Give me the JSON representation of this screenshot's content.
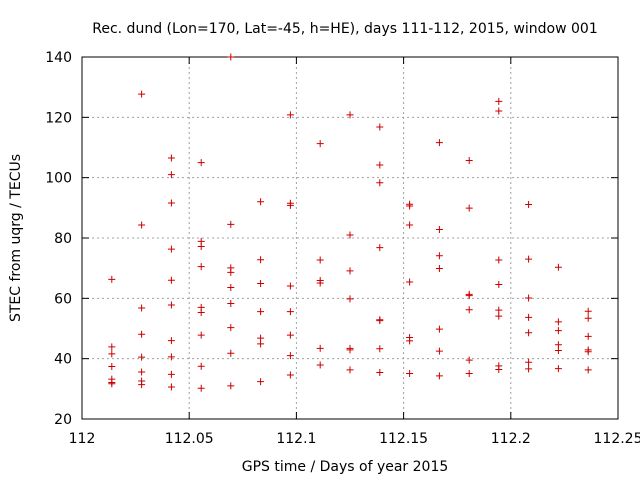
{
  "chart_data": {
    "type": "scatter",
    "title": "Rec. dund (Lon=170, Lat=-45, h=HE), days 111-112, 2015, window 001",
    "xlabel": "GPS time / Days of year 2015",
    "ylabel": "STEC from uqrg / TECUs",
    "xlim": [
      112,
      112.25
    ],
    "ylim": [
      20,
      140
    ],
    "xticks": [
      112,
      112.05,
      112.1,
      112.15,
      112.2,
      112.25
    ],
    "xtick_labels": [
      "112",
      "112.05",
      "112.1",
      "112.15",
      "112.2",
      "112.25"
    ],
    "yticks": [
      20,
      40,
      60,
      80,
      100,
      120,
      140
    ],
    "ytick_labels": [
      "20",
      "40",
      "60",
      "80",
      "100",
      "120",
      "140"
    ],
    "grid": true,
    "marker": "+",
    "color": "#cc0000",
    "series": [
      {
        "name": "STEC",
        "points": [
          [
            112.0139,
            66.3
          ],
          [
            112.0139,
            43.9
          ],
          [
            112.0139,
            41.6
          ],
          [
            112.0139,
            37.4
          ],
          [
            112.0139,
            33.2
          ],
          [
            112.0139,
            32.1
          ],
          [
            112.0139,
            31.7
          ],
          [
            112.0278,
            127.7
          ],
          [
            112.0278,
            84.3
          ],
          [
            112.0278,
            56.8
          ],
          [
            112.0278,
            48.1
          ],
          [
            112.0278,
            40.5
          ],
          [
            112.0278,
            35.6
          ],
          [
            112.0278,
            32.6
          ],
          [
            112.0278,
            31.4
          ],
          [
            112.0417,
            106.5
          ],
          [
            112.0417,
            101.0
          ],
          [
            112.0417,
            91.6
          ],
          [
            112.0417,
            76.3
          ],
          [
            112.0417,
            66.0
          ],
          [
            112.0417,
            57.8
          ],
          [
            112.0417,
            46.0
          ],
          [
            112.0417,
            40.6
          ],
          [
            112.0417,
            34.8
          ],
          [
            112.0417,
            30.6
          ],
          [
            112.0556,
            105.0
          ],
          [
            112.0556,
            78.9
          ],
          [
            112.0556,
            77.2
          ],
          [
            112.0556,
            70.5
          ],
          [
            112.0556,
            57.0
          ],
          [
            112.0556,
            55.3
          ],
          [
            112.0556,
            47.8
          ],
          [
            112.0556,
            37.5
          ],
          [
            112.0556,
            30.2
          ],
          [
            112.0694,
            140.0
          ],
          [
            112.0694,
            84.5
          ],
          [
            112.0694,
            70.1
          ],
          [
            112.0694,
            68.6
          ],
          [
            112.0694,
            63.6
          ],
          [
            112.0694,
            58.3
          ],
          [
            112.0694,
            50.3
          ],
          [
            112.0694,
            41.8
          ],
          [
            112.0694,
            31.0
          ],
          [
            112.0833,
            92.0
          ],
          [
            112.0833,
            72.8
          ],
          [
            112.0833,
            64.9
          ],
          [
            112.0833,
            55.6
          ],
          [
            112.0833,
            46.8
          ],
          [
            112.0833,
            44.9
          ],
          [
            112.0833,
            32.4
          ],
          [
            112.0972,
            120.8
          ],
          [
            112.0972,
            91.5
          ],
          [
            112.0972,
            90.8
          ],
          [
            112.0972,
            64.1
          ],
          [
            112.0972,
            55.6
          ],
          [
            112.0972,
            47.8
          ],
          [
            112.0972,
            41.0
          ],
          [
            112.0972,
            34.6
          ],
          [
            112.1111,
            111.3
          ],
          [
            112.1111,
            72.7
          ],
          [
            112.1111,
            65.9
          ],
          [
            112.1111,
            65.1
          ],
          [
            112.1111,
            43.4
          ],
          [
            112.1111,
            37.9
          ],
          [
            112.125,
            120.8
          ],
          [
            112.125,
            81.0
          ],
          [
            112.125,
            69.1
          ],
          [
            112.125,
            59.8
          ],
          [
            112.125,
            43.4
          ],
          [
            112.125,
            42.9
          ],
          [
            112.125,
            36.3
          ],
          [
            112.1389,
            116.8
          ],
          [
            112.1389,
            104.2
          ],
          [
            112.1389,
            98.3
          ],
          [
            112.1389,
            76.8
          ],
          [
            112.1389,
            52.9
          ],
          [
            112.1389,
            52.6
          ],
          [
            112.1389,
            43.3
          ],
          [
            112.1389,
            35.4
          ],
          [
            112.1528,
            91.2
          ],
          [
            112.1528,
            90.6
          ],
          [
            112.1528,
            84.3
          ],
          [
            112.1528,
            65.4
          ],
          [
            112.1528,
            47.0
          ],
          [
            112.1528,
            45.9
          ],
          [
            112.1528,
            35.1
          ],
          [
            112.1667,
            111.6
          ],
          [
            112.1667,
            82.8
          ],
          [
            112.1667,
            74.1
          ],
          [
            112.1667,
            69.9
          ],
          [
            112.1667,
            49.8
          ],
          [
            112.1667,
            42.5
          ],
          [
            112.1667,
            34.3
          ],
          [
            112.1806,
            105.7
          ],
          [
            112.1806,
            89.9
          ],
          [
            112.1806,
            61.3
          ],
          [
            112.1806,
            60.9
          ],
          [
            112.1806,
            56.2
          ],
          [
            112.1806,
            39.5
          ],
          [
            112.1806,
            35.1
          ],
          [
            112.1944,
            125.3
          ],
          [
            112.1944,
            122.1
          ],
          [
            112.1944,
            72.7
          ],
          [
            112.1944,
            64.6
          ],
          [
            112.1944,
            56.1
          ],
          [
            112.1944,
            54.1
          ],
          [
            112.1944,
            37.6
          ],
          [
            112.1944,
            36.4
          ],
          [
            112.2083,
            91.1
          ],
          [
            112.2083,
            73.0
          ],
          [
            112.2083,
            60.1
          ],
          [
            112.2083,
            53.7
          ],
          [
            112.2083,
            48.6
          ],
          [
            112.2083,
            38.8
          ],
          [
            112.2083,
            36.6
          ],
          [
            112.2222,
            70.3
          ],
          [
            112.2222,
            52.2
          ],
          [
            112.2222,
            49.3
          ],
          [
            112.2222,
            44.6
          ],
          [
            112.2222,
            42.7
          ],
          [
            112.2222,
            36.7
          ],
          [
            112.2361,
            55.7
          ],
          [
            112.2361,
            53.4
          ],
          [
            112.2361,
            47.4
          ],
          [
            112.2361,
            42.9
          ],
          [
            112.2361,
            42.3
          ],
          [
            112.2361,
            36.3
          ]
        ]
      }
    ]
  }
}
